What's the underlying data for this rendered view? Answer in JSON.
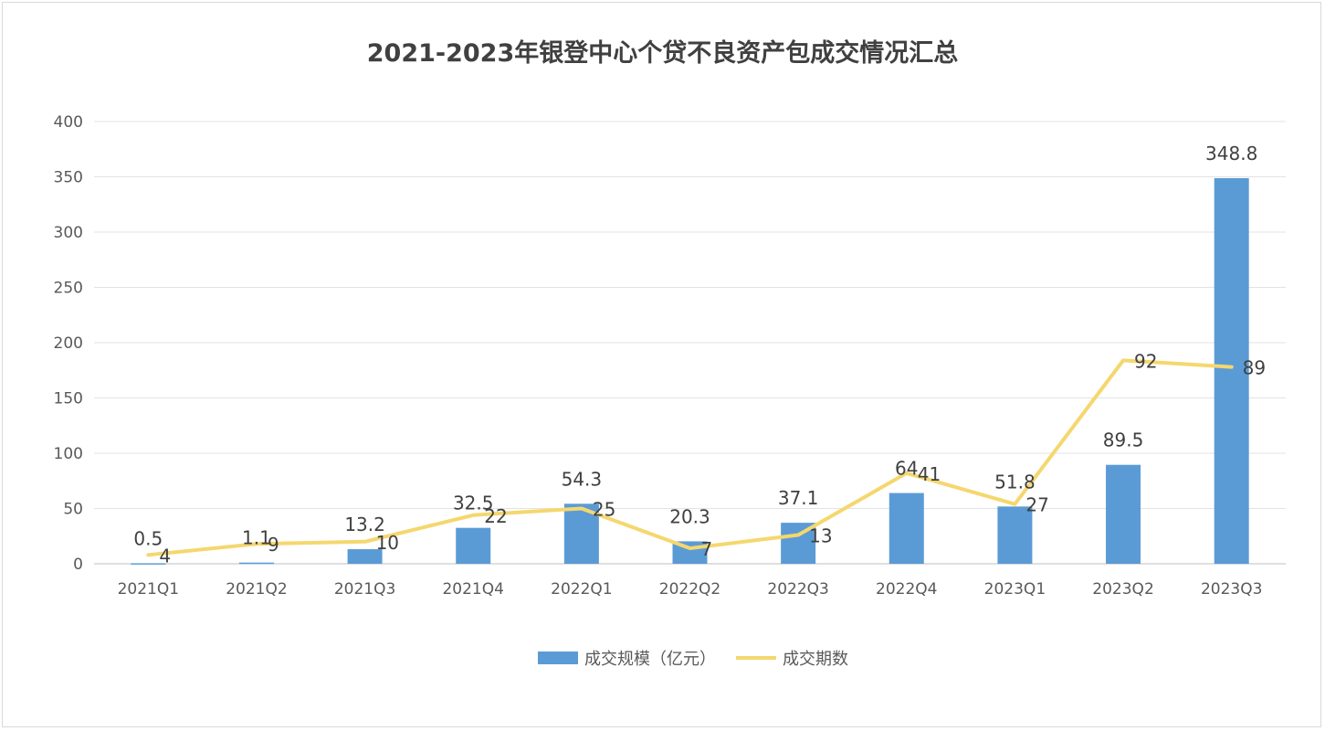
{
  "chart_data": {
    "type": "bar+line",
    "title": "2021-2023年银登中心个贷不良资产包成交情况汇总",
    "categories": [
      "2021Q1",
      "2021Q2",
      "2021Q3",
      "2021Q4",
      "2022Q1",
      "2022Q2",
      "2022Q3",
      "2022Q4",
      "2023Q1",
      "2023Q2",
      "2023Q3"
    ],
    "series": [
      {
        "name": "成交规模（亿元）",
        "type": "bar",
        "color": "#5b9bd5",
        "axis": "primary",
        "values": [
          0.5,
          1.1,
          13.2,
          32.5,
          54.3,
          20.3,
          37.1,
          64,
          51.8,
          89.5,
          348.8
        ],
        "labels": [
          "0.5",
          "1.1",
          "13.2",
          "32.5",
          "54.3",
          "20.3",
          "37.1",
          "64",
          "51.8",
          "89.5",
          "348.8"
        ]
      },
      {
        "name": "成交期数",
        "type": "line",
        "color": "#f5d76e",
        "axis": "secondary (hidden)",
        "values": [
          4,
          9,
          10,
          22,
          25,
          7,
          13,
          41,
          27,
          92,
          89
        ],
        "labels": [
          "4",
          "9",
          "10",
          "22",
          "25",
          "7",
          "13",
          "41",
          "27",
          "92",
          "89"
        ]
      }
    ],
    "ylim": [
      0,
      400
    ],
    "yticks": [
      "0",
      "50",
      "100",
      "150",
      "200",
      "250",
      "300",
      "350",
      "400"
    ],
    "secondary_ylim": [
      0,
      200
    ],
    "grid": true,
    "legend": "bottom"
  }
}
